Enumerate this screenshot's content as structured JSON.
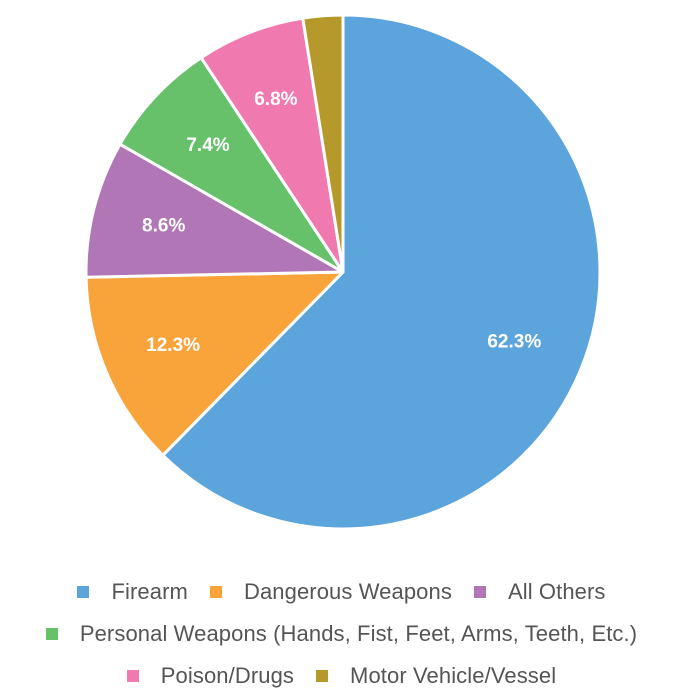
{
  "chart_data": {
    "type": "pie",
    "start_angle_deg": 0,
    "direction": "clockwise",
    "slices": [
      {
        "name": "Firearm",
        "value": 62.3,
        "label": "62.3%",
        "color": "#5ba4dc"
      },
      {
        "name": "Dangerous Weapons",
        "value": 12.3,
        "label": "12.3%",
        "color": "#f9a43b"
      },
      {
        "name": "All Others",
        "value": 8.6,
        "label": "8.6%",
        "color": "#b076b6"
      },
      {
        "name": "Personal Weapons (Hands, Fist, Feet, Arms, Teeth, Etc.)",
        "value": 7.4,
        "label": "7.4%",
        "color": "#67c16a"
      },
      {
        "name": "Poison/Drugs",
        "value": 6.8,
        "label": "6.8%",
        "color": "#f07ab0"
      },
      {
        "name": "Motor Vehicle/Vessel",
        "value": 2.5,
        "label": "",
        "color": "#b59a2b"
      }
    ],
    "legend_position": "bottom",
    "legend_rows": [
      [
        "Firearm",
        "Dangerous Weapons",
        "All Others"
      ],
      [
        "Personal Weapons (Hands, Fist, Feet, Arms, Teeth, Etc.)"
      ],
      [
        "Poison/Drugs",
        "Motor Vehicle/Vessel"
      ]
    ]
  }
}
